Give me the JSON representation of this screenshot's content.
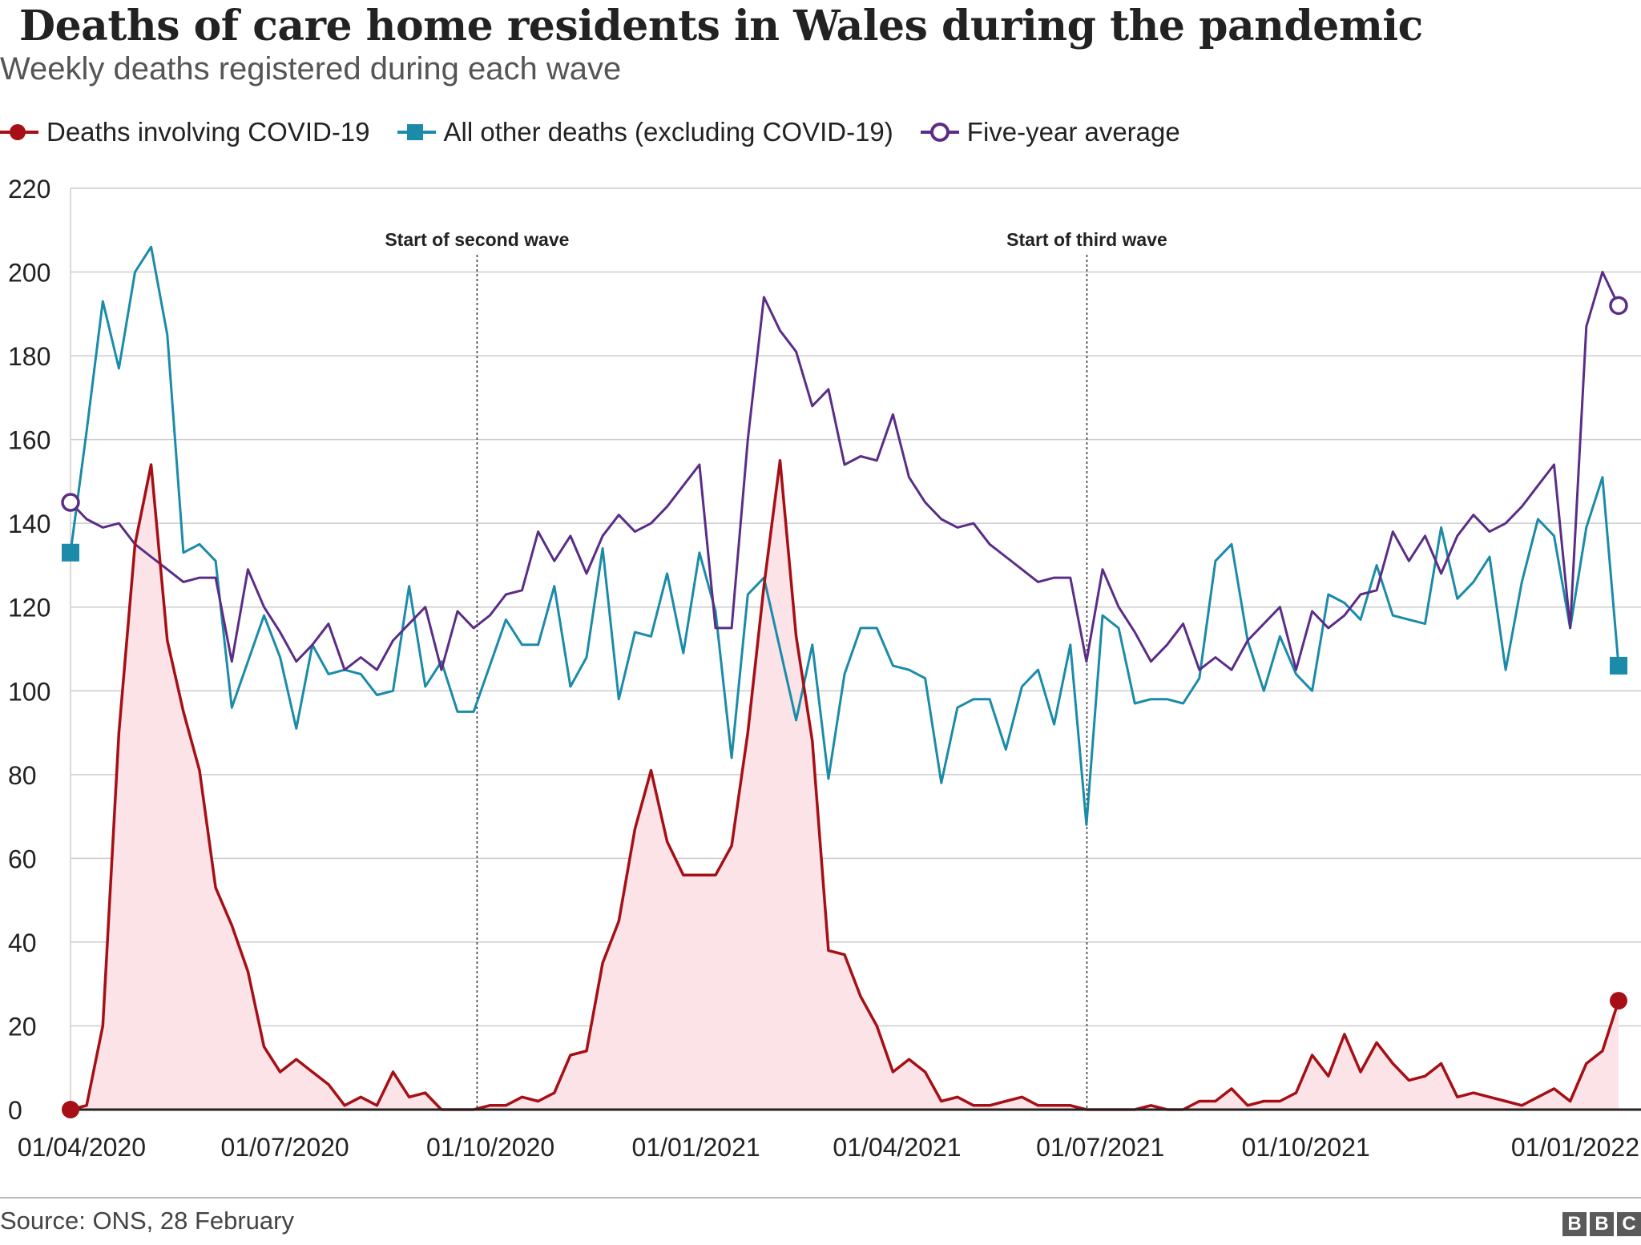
{
  "title": "Deaths of care home residents in Wales during the pandemic",
  "subtitle": "Weekly deaths registered during each wave",
  "legend": [
    {
      "label": "Deaths involving COVID-19",
      "color": "#a50f15",
      "marker": "filled-circle"
    },
    {
      "label": "All other deaths (excluding COVID-19)",
      "color": "#1a8ba8",
      "marker": "filled-square"
    },
    {
      "label": "Five-year average",
      "color": "#5b2d86",
      "marker": "open-circle"
    }
  ],
  "source": "Source: ONS, 28 February",
  "logo": [
    "B",
    "B",
    "C"
  ],
  "chart_data": {
    "type": "line",
    "title": "Deaths of care home residents in Wales during the pandemic",
    "subtitle": "Weekly deaths registered during each wave",
    "xlabel": "",
    "ylabel": "",
    "ylim": [
      0,
      220
    ],
    "yticks": [
      0,
      20,
      40,
      60,
      80,
      100,
      120,
      140,
      160,
      180,
      200,
      220
    ],
    "grid": true,
    "legend_position": "top-left",
    "x_start": "2020-03-27",
    "x_end": "2022-02-18",
    "xticks": [
      {
        "label": "01/04/2020",
        "date": "2020-04-01"
      },
      {
        "label": "01/07/2020",
        "date": "2020-07-01"
      },
      {
        "label": "01/10/2020",
        "date": "2020-10-01"
      },
      {
        "label": "01/01/2021",
        "date": "2021-01-01"
      },
      {
        "label": "01/04/2021",
        "date": "2021-04-01"
      },
      {
        "label": "01/07/2021",
        "date": "2021-07-01"
      },
      {
        "label": "01/10/2021",
        "date": "2021-10-01"
      },
      {
        "label": "01/01/2022",
        "date": "2022-01-01"
      }
    ],
    "annotations": [
      {
        "label": "Start of second wave",
        "date": "2020-09-25"
      },
      {
        "label": "Start of third wave",
        "date": "2021-06-25"
      }
    ],
    "series": [
      {
        "name": "Deaths involving COVID-19",
        "color": "#a50f15",
        "fill": "#fbe3e8",
        "values": [
          0,
          1,
          20,
          90,
          135,
          154,
          112,
          95,
          81,
          53,
          44,
          33,
          15,
          9,
          12,
          9,
          6,
          1,
          3,
          1,
          9,
          3,
          4,
          0,
          0,
          0,
          1,
          1,
          3,
          2,
          4,
          13,
          14,
          35,
          45,
          67,
          81,
          64,
          56,
          56,
          56,
          63,
          90,
          125,
          155,
          113,
          88,
          38,
          37,
          27,
          20,
          9,
          12,
          9,
          2,
          3,
          1,
          1,
          2,
          3,
          1,
          1,
          1,
          0,
          0,
          0,
          0,
          1,
          0,
          0,
          2,
          2,
          5,
          1,
          2,
          2,
          4,
          13,
          8,
          18,
          9,
          16,
          11,
          7,
          8,
          11,
          3,
          4,
          3,
          2,
          1,
          3,
          5,
          2,
          11,
          14,
          26
        ]
      },
      {
        "name": "All other deaths (excluding COVID-19)",
        "color": "#1a8ba8",
        "values": [
          133,
          162,
          193,
          177,
          200,
          206,
          185,
          133,
          135,
          131,
          96,
          107,
          118,
          108,
          91,
          111,
          104,
          105,
          104,
          99,
          100,
          125,
          101,
          107,
          95,
          95,
          106,
          117,
          111,
          111,
          125,
          101,
          108,
          134,
          98,
          114,
          113,
          128,
          109,
          133,
          119,
          84,
          123,
          127,
          110,
          93,
          111,
          79,
          104,
          115,
          115,
          106,
          105,
          103,
          78,
          96,
          98,
          98,
          86,
          101,
          105,
          92,
          111,
          68,
          118,
          115,
          97,
          98,
          98,
          97,
          103,
          131,
          135,
          112,
          100,
          113,
          104,
          100,
          123,
          121,
          117,
          130,
          118,
          117,
          116,
          139,
          122,
          126,
          132,
          105,
          126,
          141,
          137,
          115,
          139,
          151,
          106
        ]
      },
      {
        "name": "Five-year average",
        "color": "#5b2d86",
        "values": [
          145,
          141,
          139,
          140,
          135,
          132,
          129,
          126,
          127,
          127,
          107,
          129,
          120,
          114,
          107,
          111,
          116,
          105,
          108,
          105,
          112,
          116,
          120,
          105,
          119,
          115,
          118,
          123,
          124,
          138,
          131,
          137,
          128,
          137,
          142,
          138,
          140,
          144,
          149,
          154,
          115,
          115,
          160,
          194,
          186,
          181,
          168,
          172,
          154,
          156,
          155,
          166,
          151,
          145,
          141,
          139,
          140,
          135,
          132,
          129,
          126,
          127,
          127,
          107,
          129,
          120,
          114,
          107,
          111,
          116,
          105,
          108,
          105,
          112,
          116,
          120,
          105,
          119,
          115,
          118,
          123,
          124,
          138,
          131,
          137,
          128,
          137,
          142,
          138,
          140,
          144,
          149,
          154,
          115,
          187,
          200,
          192
        ]
      }
    ]
  }
}
